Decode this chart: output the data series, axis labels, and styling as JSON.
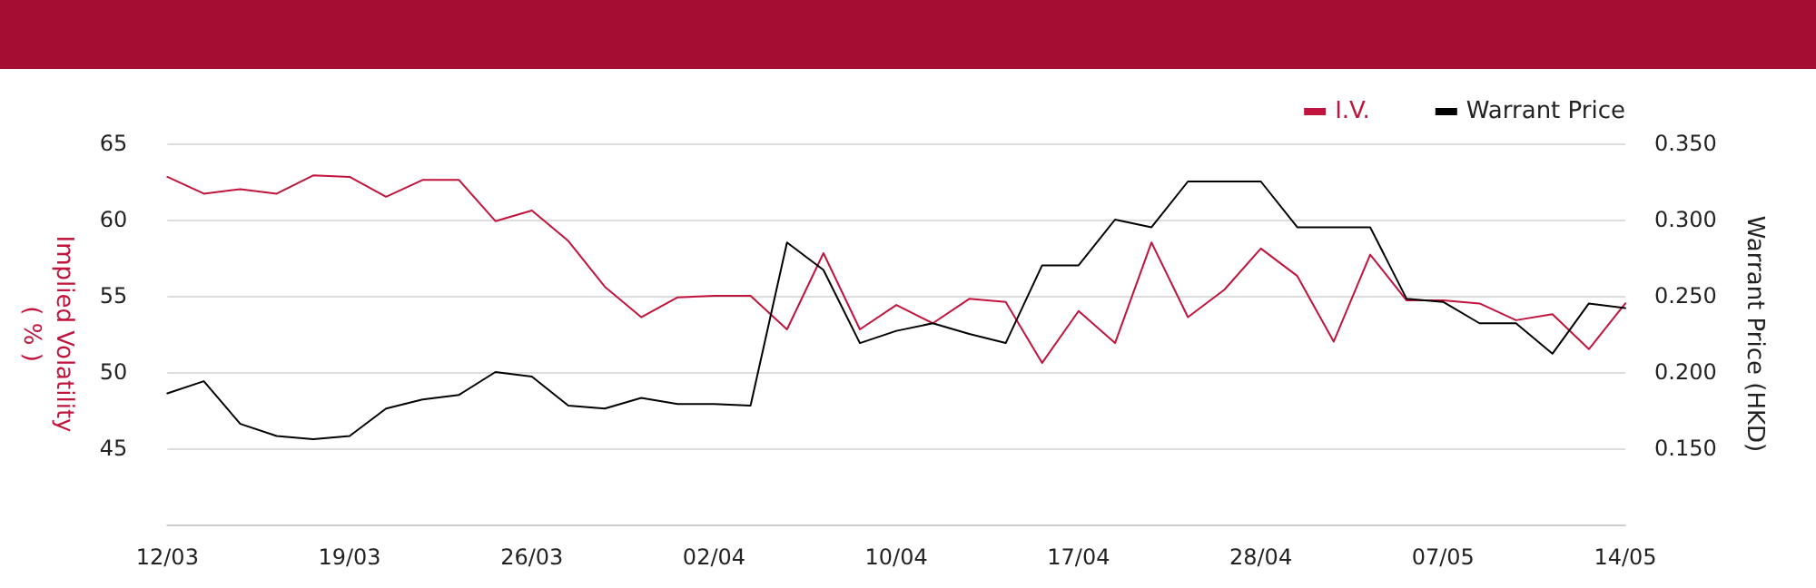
{
  "chart_data": {
    "type": "line",
    "categories": [
      "12/03",
      null,
      null,
      null,
      null,
      "19/03",
      null,
      null,
      null,
      null,
      "26/03",
      null,
      null,
      null,
      null,
      "02/04",
      null,
      null,
      null,
      null,
      "10/04",
      null,
      null,
      null,
      null,
      "17/04",
      null,
      null,
      null,
      null,
      "28/04",
      null,
      null,
      null,
      null,
      "07/05",
      null,
      null,
      null,
      null,
      "14/05"
    ],
    "ylabel": "Implied Volatility\n( % )",
    "y2label": "Warrant Price (HKD)",
    "series": [
      {
        "name": "I.V.",
        "color": "#c0143c",
        "values": [
          62.8,
          61.7,
          62.0,
          61.7,
          62.9,
          62.8,
          61.5,
          62.6,
          62.6,
          59.9,
          60.6,
          58.6,
          55.6,
          53.6,
          54.9,
          55.0,
          55.0,
          52.8,
          57.8,
          52.8,
          54.4,
          53.2,
          54.8,
          54.6,
          50.6,
          54.0,
          51.9,
          58.5,
          53.6,
          55.4,
          58.1,
          56.3,
          52.0,
          57.7,
          54.7,
          54.7,
          54.5,
          53.4,
          53.8,
          51.5,
          54.5
        ]
      },
      {
        "name": "Warrant Price",
        "color": "#000000",
        "axis": "y2",
        "values": [
          0.186,
          0.194,
          0.166,
          0.158,
          0.156,
          0.158,
          0.176,
          0.182,
          0.185,
          0.2,
          0.197,
          0.178,
          0.176,
          0.183,
          0.179,
          0.179,
          0.178,
          0.285,
          0.267,
          0.219,
          0.227,
          0.232,
          0.225,
          0.219,
          0.27,
          0.27,
          0.3,
          0.295,
          0.325,
          0.325,
          0.325,
          0.295,
          0.295,
          0.295,
          0.248,
          0.246,
          0.232,
          0.232,
          0.212,
          0.245,
          0.242
        ]
      }
    ],
    "ylim": [
      40,
      65
    ],
    "yticks": [
      45,
      50,
      55,
      60,
      65
    ],
    "y2lim": [
      0.1,
      0.35
    ],
    "y2ticks": [
      {
        "value": 0.15,
        "label": "0.150"
      },
      {
        "value": 0.2,
        "label": "0.200"
      },
      {
        "value": 0.25,
        "label": "0.250"
      },
      {
        "value": 0.3,
        "label": "0.300"
      },
      {
        "value": 0.35,
        "label": "0.350"
      }
    ],
    "grid": "y",
    "legend": "top right",
    "marker": "none",
    "line_style": "solid"
  }
}
